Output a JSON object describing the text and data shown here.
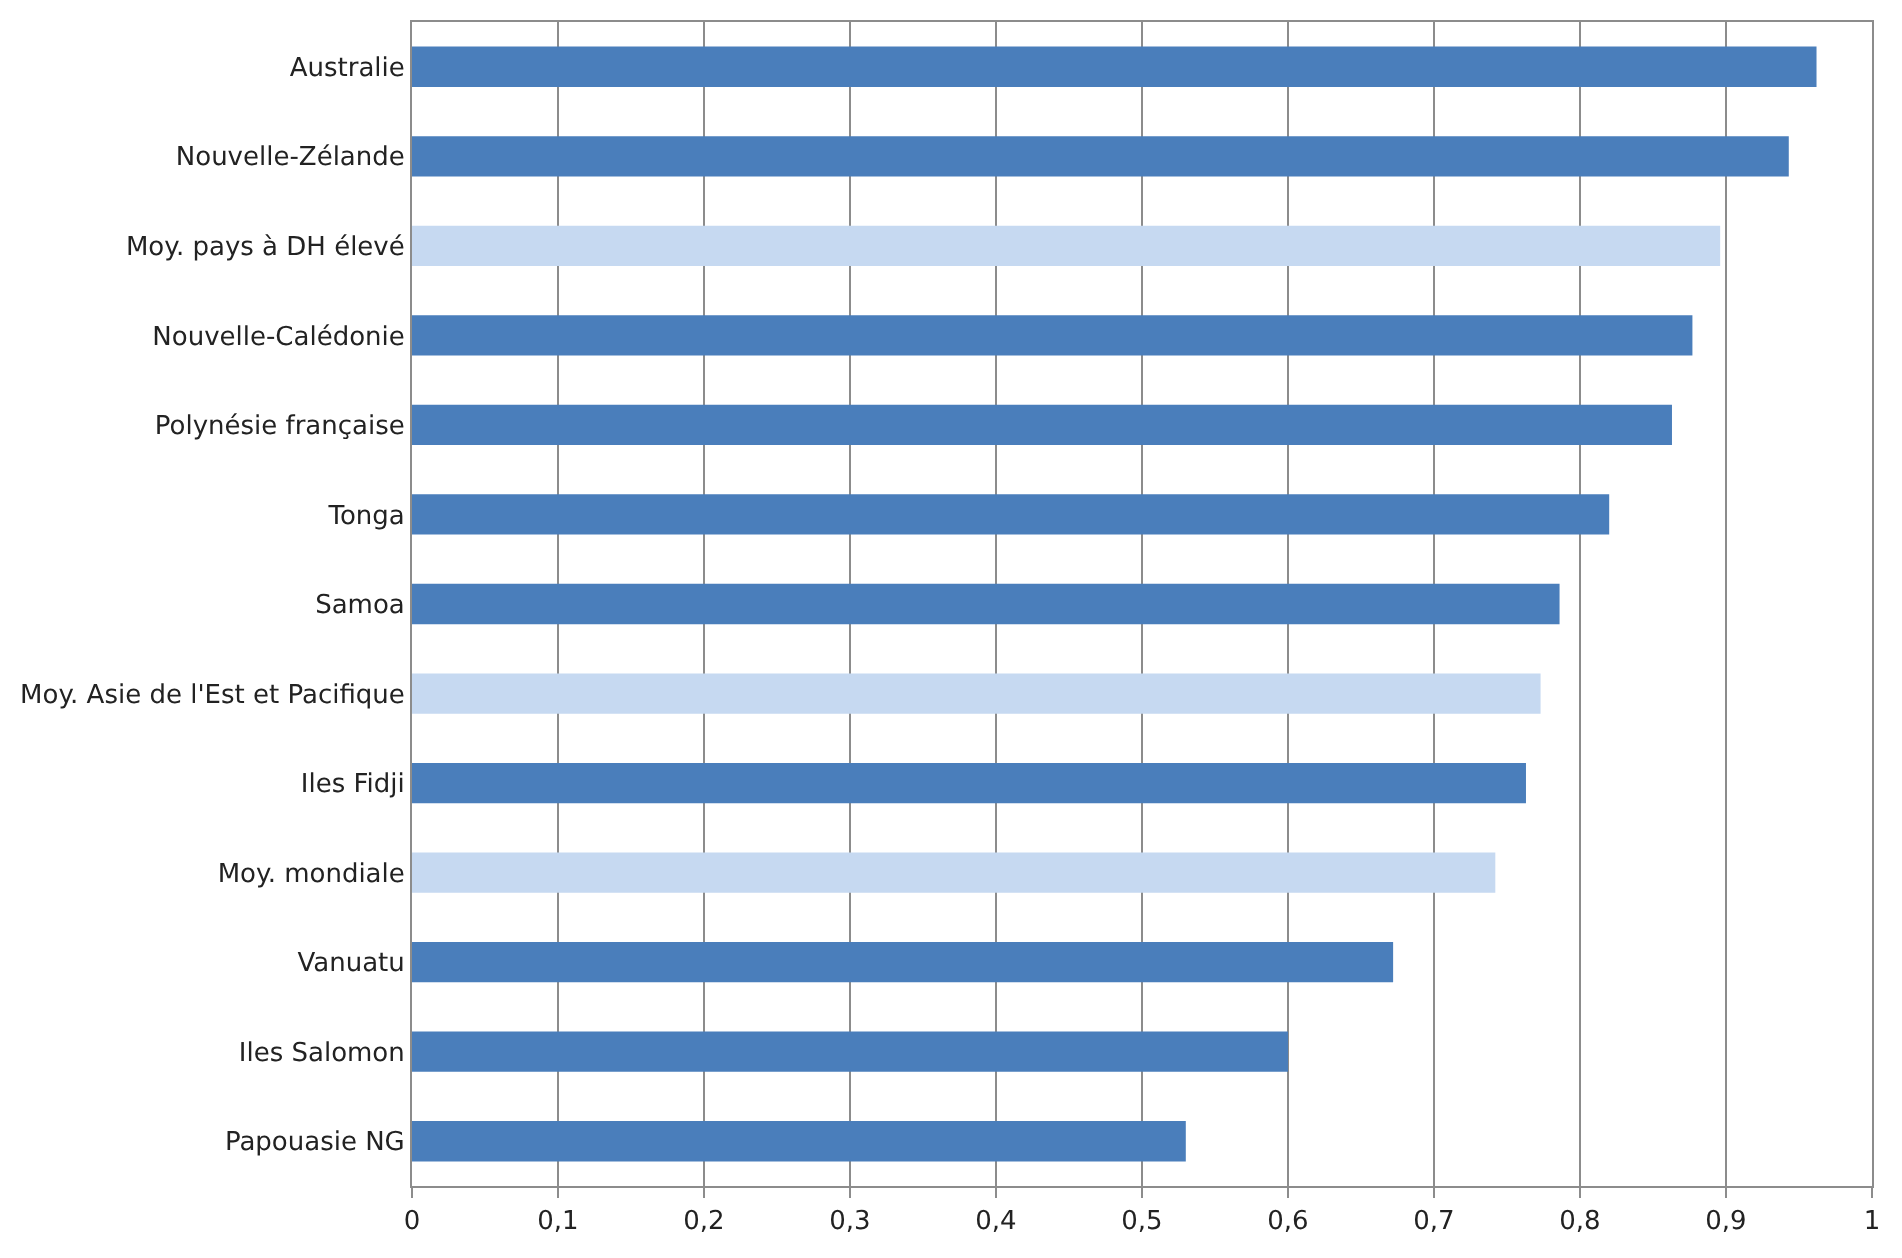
{
  "chart_data": {
    "type": "bar",
    "orientation": "horizontal",
    "categories": [
      "Australie",
      "Nouvelle-Zélande",
      "Moy. pays à DH élevé",
      "Nouvelle-Calédonie",
      "Polynésie française",
      "Tonga",
      "Samoa",
      "Moy. Asie de l'Est et Pacifique",
      "Iles Fidji",
      "Moy. mondiale",
      "Vanuatu",
      "Iles Salomon",
      "Papouasie NG"
    ],
    "values": [
      0.962,
      0.943,
      0.896,
      0.877,
      0.863,
      0.82,
      0.786,
      0.773,
      0.763,
      0.742,
      0.672,
      0.6,
      0.53
    ],
    "colors": [
      "#4a7ebb",
      "#4a7ebb",
      "#c6d9f1",
      "#4a7ebb",
      "#4a7ebb",
      "#4a7ebb",
      "#4a7ebb",
      "#c6d9f1",
      "#4a7ebb",
      "#c6d9f1",
      "#4a7ebb",
      "#4a7ebb",
      "#4a7ebb"
    ],
    "xlim": [
      0,
      1
    ],
    "xticks": [
      0,
      {
        "value": 0.1,
        "label": "0,1"
      },
      {
        "value": 0.2,
        "label": "0,2"
      },
      {
        "value": 0.3,
        "label": "0,3"
      },
      {
        "value": 0.4,
        "label": "0,4"
      },
      {
        "value": 0.5,
        "label": "0,5"
      },
      {
        "value": 0.6,
        "label": "0,6"
      },
      {
        "value": 0.7,
        "label": "0,7"
      },
      {
        "value": 0.8,
        "label": "0,8"
      },
      {
        "value": 0.9,
        "label": "0,9"
      },
      1
    ],
    "grid": "x"
  }
}
